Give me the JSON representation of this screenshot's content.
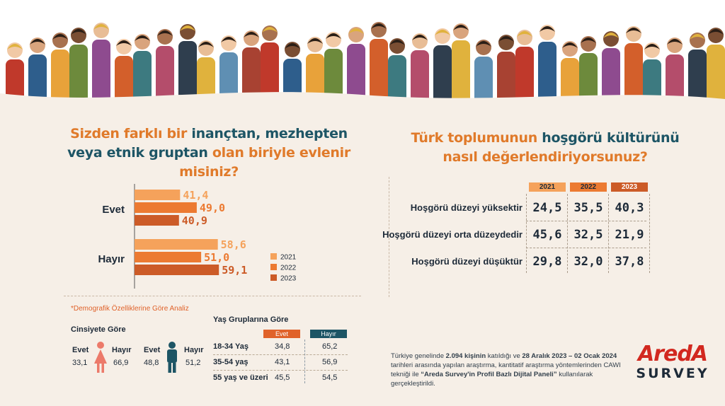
{
  "left_question": {
    "part1": "Sizden farklı bir ",
    "part2": "inançtan, mezhepten",
    "part3": "veya etnik gruptan",
    "part4": " olan biriyle evlenir misiniz?"
  },
  "right_question": {
    "part1": "Türk toplumunun ",
    "part2": "hoşgörü kültürünü",
    "part3": "nasıl değerlendiriyorsunuz?"
  },
  "chart_data": [
    {
      "type": "bar",
      "orientation": "horizontal",
      "categories": [
        "Evet",
        "Hayır"
      ],
      "series": [
        {
          "name": "2021",
          "values": [
            41.4,
            58.6
          ],
          "labels": [
            "41,4",
            "58,6"
          ],
          "color": "#f5a25b"
        },
        {
          "name": "2022",
          "values": [
            49.0,
            51.0
          ],
          "labels": [
            "49,0",
            "51,0"
          ],
          "color": "#ec7a31"
        },
        {
          "name": "2023",
          "values": [
            40.9,
            59.1
          ],
          "labels": [
            "40,9",
            "59,1"
          ],
          "color": "#cc5b27"
        }
      ],
      "legend_position": "right"
    },
    {
      "type": "table",
      "columns": [
        "2021",
        "2022",
        "2023"
      ],
      "column_colors": [
        "#f5a25b",
        "#ec7a31",
        "#cc5b27"
      ],
      "rows": [
        {
          "label": "Hoşgörü düzeyi yüksektir",
          "values": [
            "24,5",
            "35,5",
            "40,3"
          ]
        },
        {
          "label": "Hoşgörü düzeyi orta düzeydedir",
          "values": [
            "45,6",
            "32,5",
            "21,9"
          ]
        },
        {
          "label": "Hoşgörü düzeyi düşüktür",
          "values": [
            "29,8",
            "32,0",
            "37,8"
          ]
        }
      ]
    }
  ],
  "demographics": {
    "note": "*Demografik Özelliklerine Göre Analiz",
    "gender": {
      "title": "Cinsiyete Göre",
      "female": {
        "evet_label": "Evet",
        "evet": "33,1",
        "hayir_label": "Hayır",
        "hayir": "66,9",
        "color": "#ec7a6a"
      },
      "male": {
        "evet_label": "Evet",
        "evet": "48,8",
        "hayir_label": "Hayır",
        "hayir": "51,2",
        "color": "#1d5565"
      }
    },
    "age": {
      "title": "Yaş Gruplarına Göre",
      "evet_header": "Evet",
      "hayir_header": "Hayır",
      "evet_color": "#e0622a",
      "hayir_color": "#1d5565",
      "rows": [
        {
          "label": "18-34 Yaş",
          "evet": "34,8",
          "hayir": "65,2"
        },
        {
          "label": "35-54 yaş",
          "evet": "43,1",
          "hayir": "56,9"
        },
        {
          "label": "55 yaş ve üzeri",
          "evet": "45,5",
          "hayir": "54,5"
        }
      ]
    }
  },
  "survey_note": {
    "s1": "Türkiye genelinde ",
    "s2": "2.094 kişinin",
    "s3": " katıldığı ve ",
    "s4": "28 Aralık 2023 – 02 Ocak 2024",
    "s5": " tarihleri arasında yapılan araştırma, kantitatif araştırma yöntemlerinden CAWI tekniği ile ",
    "s6": "“Areda Survey'in Profil Bazlı Dijital Paneli”",
    "s7": " kullanılarak gerçekleştirildi."
  },
  "logo": {
    "line1": "AredA",
    "line2": "SURVEY"
  }
}
